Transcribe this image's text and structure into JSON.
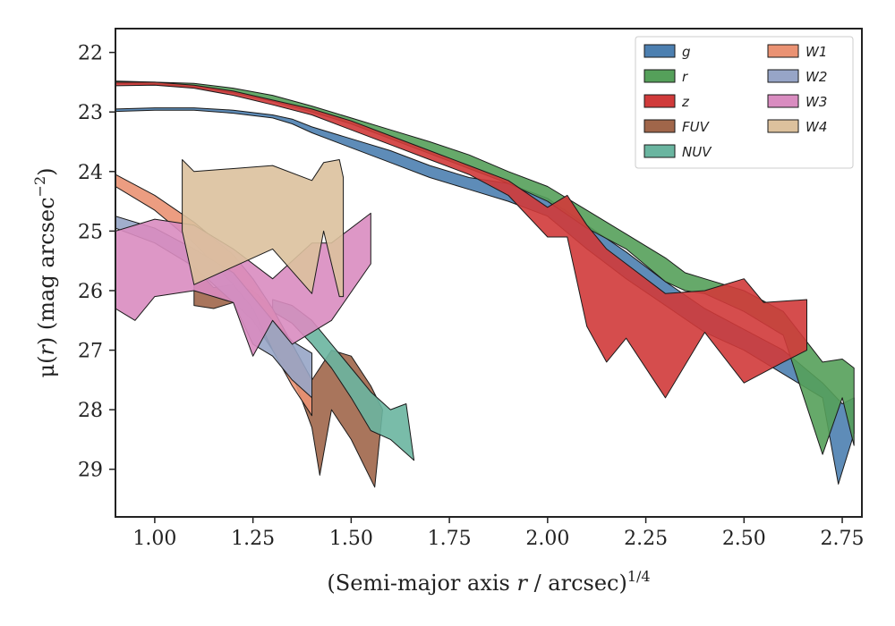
{
  "chart_data": {
    "type": "area",
    "xlabel_pre": "(Semi-major axis ",
    "xlabel_var": "r",
    "xlabel_post": " / arcsec)",
    "xlabel_sup": "1/4",
    "ylabel_pre": "μ(",
    "ylabel_var": "r",
    "ylabel_post": ") (mag arcsec",
    "ylabel_sup": "−2",
    "ylabel_end": ")",
    "xlim": [
      0.9,
      2.8
    ],
    "ylim": [
      29.8,
      21.6
    ],
    "y_inverted": true,
    "xticks": [
      "1.00",
      "1.25",
      "1.50",
      "1.75",
      "2.00",
      "2.25",
      "2.50",
      "2.75"
    ],
    "xtick_values": [
      1.0,
      1.25,
      1.5,
      1.75,
      2.0,
      2.25,
      2.5,
      2.75
    ],
    "yticks": [
      "22",
      "23",
      "24",
      "25",
      "26",
      "27",
      "28",
      "29"
    ],
    "ytick_values": [
      22,
      23,
      24,
      25,
      26,
      27,
      28,
      29
    ],
    "grid": false,
    "legend_position": "top-right",
    "legend_columns": 2,
    "series": [
      {
        "name": "g",
        "color": "#4c7fb0",
        "upper": [
          [
            0.9,
            22.95
          ],
          [
            1.0,
            22.93
          ],
          [
            1.1,
            22.93
          ],
          [
            1.2,
            22.97
          ],
          [
            1.3,
            23.05
          ],
          [
            1.35,
            23.12
          ],
          [
            1.4,
            23.25
          ],
          [
            1.5,
            23.45
          ],
          [
            1.6,
            23.65
          ],
          [
            1.7,
            23.9
          ],
          [
            1.8,
            24.1
          ],
          [
            1.9,
            24.2
          ],
          [
            2.0,
            24.45
          ],
          [
            2.1,
            24.9
          ],
          [
            2.2,
            25.35
          ],
          [
            2.3,
            25.85
          ],
          [
            2.4,
            26.3
          ],
          [
            2.5,
            26.65
          ],
          [
            2.6,
            27.0
          ],
          [
            2.7,
            27.55
          ],
          [
            2.75,
            27.9
          ],
          [
            2.78,
            27.8
          ]
        ],
        "lower": [
          [
            0.9,
            22.99
          ],
          [
            1.0,
            22.97
          ],
          [
            1.1,
            22.97
          ],
          [
            1.2,
            23.02
          ],
          [
            1.3,
            23.1
          ],
          [
            1.35,
            23.2
          ],
          [
            1.4,
            23.35
          ],
          [
            1.5,
            23.6
          ],
          [
            1.6,
            23.85
          ],
          [
            1.7,
            24.1
          ],
          [
            1.8,
            24.3
          ],
          [
            1.9,
            24.5
          ],
          [
            2.0,
            24.75
          ],
          [
            2.1,
            25.3
          ],
          [
            2.2,
            25.8
          ],
          [
            2.3,
            26.25
          ],
          [
            2.4,
            26.7
          ],
          [
            2.5,
            27.0
          ],
          [
            2.6,
            27.4
          ],
          [
            2.7,
            27.8
          ],
          [
            2.74,
            29.25
          ],
          [
            2.78,
            28.4
          ]
        ]
      },
      {
        "name": "r",
        "color": "#55a05a",
        "upper": [
          [
            0.9,
            22.48
          ],
          [
            1.0,
            22.5
          ],
          [
            1.1,
            22.52
          ],
          [
            1.2,
            22.6
          ],
          [
            1.3,
            22.72
          ],
          [
            1.4,
            22.9
          ],
          [
            1.5,
            23.1
          ],
          [
            1.6,
            23.3
          ],
          [
            1.7,
            23.5
          ],
          [
            1.8,
            23.72
          ],
          [
            1.9,
            24.0
          ],
          [
            2.0,
            24.25
          ],
          [
            2.1,
            24.65
          ],
          [
            2.2,
            25.05
          ],
          [
            2.3,
            25.45
          ],
          [
            2.35,
            25.7
          ],
          [
            2.4,
            25.8
          ],
          [
            2.5,
            26.0
          ],
          [
            2.6,
            26.35
          ],
          [
            2.7,
            27.2
          ],
          [
            2.75,
            27.15
          ],
          [
            2.78,
            27.3
          ]
        ],
        "lower": [
          [
            0.9,
            22.52
          ],
          [
            1.0,
            22.54
          ],
          [
            1.1,
            22.58
          ],
          [
            1.2,
            22.68
          ],
          [
            1.3,
            22.82
          ],
          [
            1.4,
            23.0
          ],
          [
            1.5,
            23.2
          ],
          [
            1.6,
            23.45
          ],
          [
            1.7,
            23.7
          ],
          [
            1.8,
            23.95
          ],
          [
            1.9,
            24.2
          ],
          [
            2.0,
            24.5
          ],
          [
            2.1,
            24.95
          ],
          [
            2.2,
            25.3
          ],
          [
            2.3,
            25.85
          ],
          [
            2.35,
            26.0
          ],
          [
            2.4,
            26.05
          ],
          [
            2.5,
            26.35
          ],
          [
            2.6,
            26.75
          ],
          [
            2.7,
            28.75
          ],
          [
            2.75,
            27.8
          ],
          [
            2.78,
            28.6
          ]
        ]
      },
      {
        "name": "z",
        "color": "#d03a3a",
        "upper": [
          [
            0.9,
            22.5
          ],
          [
            1.0,
            22.5
          ],
          [
            1.1,
            22.55
          ],
          [
            1.2,
            22.65
          ],
          [
            1.3,
            22.8
          ],
          [
            1.4,
            22.95
          ],
          [
            1.5,
            23.15
          ],
          [
            1.6,
            23.4
          ],
          [
            1.7,
            23.65
          ],
          [
            1.8,
            23.9
          ],
          [
            1.9,
            24.15
          ],
          [
            2.0,
            24.6
          ],
          [
            2.05,
            24.4
          ],
          [
            2.1,
            24.9
          ],
          [
            2.15,
            25.3
          ],
          [
            2.2,
            25.55
          ],
          [
            2.3,
            26.05
          ],
          [
            2.4,
            26.0
          ],
          [
            2.5,
            25.8
          ],
          [
            2.55,
            26.2
          ],
          [
            2.66,
            26.15
          ]
        ],
        "lower": [
          [
            0.9,
            22.56
          ],
          [
            1.0,
            22.55
          ],
          [
            1.1,
            22.6
          ],
          [
            1.2,
            22.72
          ],
          [
            1.3,
            22.88
          ],
          [
            1.4,
            23.05
          ],
          [
            1.5,
            23.3
          ],
          [
            1.6,
            23.55
          ],
          [
            1.7,
            23.8
          ],
          [
            1.8,
            24.05
          ],
          [
            1.9,
            24.4
          ],
          [
            2.0,
            25.1
          ],
          [
            2.05,
            25.1
          ],
          [
            2.1,
            26.6
          ],
          [
            2.15,
            27.2
          ],
          [
            2.2,
            26.8
          ],
          [
            2.3,
            27.8
          ],
          [
            2.4,
            26.7
          ],
          [
            2.5,
            27.55
          ],
          [
            2.6,
            27.2
          ],
          [
            2.66,
            27.0
          ]
        ]
      },
      {
        "name": "FUV",
        "color": "#a0664a",
        "upper": [
          [
            1.1,
            25.6
          ],
          [
            1.15,
            25.95
          ],
          [
            1.2,
            25.9
          ],
          [
            1.25,
            26.0
          ],
          [
            1.3,
            26.3
          ],
          [
            1.35,
            26.9
          ],
          [
            1.4,
            27.5
          ],
          [
            1.45,
            27.0
          ],
          [
            1.5,
            27.1
          ],
          [
            1.55,
            27.6
          ],
          [
            1.58,
            28.0
          ]
        ],
        "lower": [
          [
            1.1,
            26.25
          ],
          [
            1.15,
            26.3
          ],
          [
            1.2,
            26.2
          ],
          [
            1.25,
            26.5
          ],
          [
            1.3,
            27.0
          ],
          [
            1.35,
            27.4
          ],
          [
            1.4,
            28.3
          ],
          [
            1.42,
            29.1
          ],
          [
            1.45,
            28.0
          ],
          [
            1.5,
            28.5
          ],
          [
            1.56,
            29.3
          ]
        ]
      },
      {
        "name": "NUV",
        "color": "#6ab5a0",
        "upper": [
          [
            1.3,
            26.15
          ],
          [
            1.35,
            26.25
          ],
          [
            1.4,
            26.5
          ],
          [
            1.45,
            26.9
          ],
          [
            1.5,
            27.3
          ],
          [
            1.55,
            27.7
          ],
          [
            1.6,
            28.0
          ],
          [
            1.64,
            27.9
          ]
        ],
        "lower": [
          [
            1.3,
            26.35
          ],
          [
            1.35,
            26.55
          ],
          [
            1.4,
            26.9
          ],
          [
            1.45,
            27.3
          ],
          [
            1.5,
            27.8
          ],
          [
            1.55,
            28.35
          ],
          [
            1.6,
            28.5
          ],
          [
            1.66,
            28.85
          ]
        ]
      },
      {
        "name": "W1",
        "color": "#ea9273",
        "upper": [
          [
            0.9,
            24.05
          ],
          [
            1.0,
            24.4
          ],
          [
            1.1,
            24.85
          ],
          [
            1.2,
            25.4
          ],
          [
            1.25,
            25.8
          ],
          [
            1.3,
            26.3
          ],
          [
            1.35,
            26.9
          ],
          [
            1.4,
            27.5
          ]
        ],
        "lower": [
          [
            0.9,
            24.25
          ],
          [
            1.0,
            24.65
          ],
          [
            1.1,
            25.2
          ],
          [
            1.2,
            25.9
          ],
          [
            1.25,
            26.3
          ],
          [
            1.3,
            27.0
          ],
          [
            1.35,
            27.6
          ],
          [
            1.4,
            28.1
          ]
        ]
      },
      {
        "name": "W2",
        "color": "#97a5c7",
        "upper": [
          [
            0.9,
            24.75
          ],
          [
            1.0,
            24.95
          ],
          [
            1.1,
            25.3
          ],
          [
            1.2,
            25.7
          ],
          [
            1.25,
            26.1
          ],
          [
            1.3,
            26.5
          ],
          [
            1.35,
            26.85
          ],
          [
            1.4,
            27.05
          ]
        ],
        "lower": [
          [
            0.9,
            24.95
          ],
          [
            1.0,
            25.2
          ],
          [
            1.1,
            25.6
          ],
          [
            1.2,
            26.2
          ],
          [
            1.25,
            26.9
          ],
          [
            1.3,
            27.1
          ],
          [
            1.35,
            27.5
          ],
          [
            1.4,
            27.8
          ]
        ]
      },
      {
        "name": "W3",
        "color": "#d98cc0",
        "upper": [
          [
            0.9,
            25.0
          ],
          [
            1.0,
            24.8
          ],
          [
            1.1,
            24.9
          ],
          [
            1.2,
            25.3
          ],
          [
            1.3,
            25.8
          ],
          [
            1.4,
            25.2
          ],
          [
            1.45,
            25.2
          ],
          [
            1.55,
            24.7
          ]
        ],
        "lower": [
          [
            0.9,
            26.3
          ],
          [
            0.95,
            26.5
          ],
          [
            1.0,
            26.1
          ],
          [
            1.1,
            26.0
          ],
          [
            1.2,
            26.2
          ],
          [
            1.25,
            27.1
          ],
          [
            1.3,
            26.5
          ],
          [
            1.35,
            26.9
          ],
          [
            1.45,
            26.5
          ],
          [
            1.55,
            25.55
          ]
        ]
      },
      {
        "name": "W4",
        "color": "#dcc19d",
        "upper": [
          [
            1.07,
            23.8
          ],
          [
            1.1,
            24.0
          ],
          [
            1.2,
            23.95
          ],
          [
            1.3,
            23.9
          ],
          [
            1.4,
            24.15
          ],
          [
            1.43,
            23.85
          ],
          [
            1.47,
            23.8
          ],
          [
            1.48,
            24.1
          ]
        ],
        "lower": [
          [
            1.07,
            25.0
          ],
          [
            1.1,
            25.9
          ],
          [
            1.2,
            25.6
          ],
          [
            1.3,
            25.3
          ],
          [
            1.4,
            26.05
          ],
          [
            1.43,
            25.0
          ],
          [
            1.47,
            26.1
          ],
          [
            1.48,
            26.1
          ]
        ]
      }
    ]
  }
}
